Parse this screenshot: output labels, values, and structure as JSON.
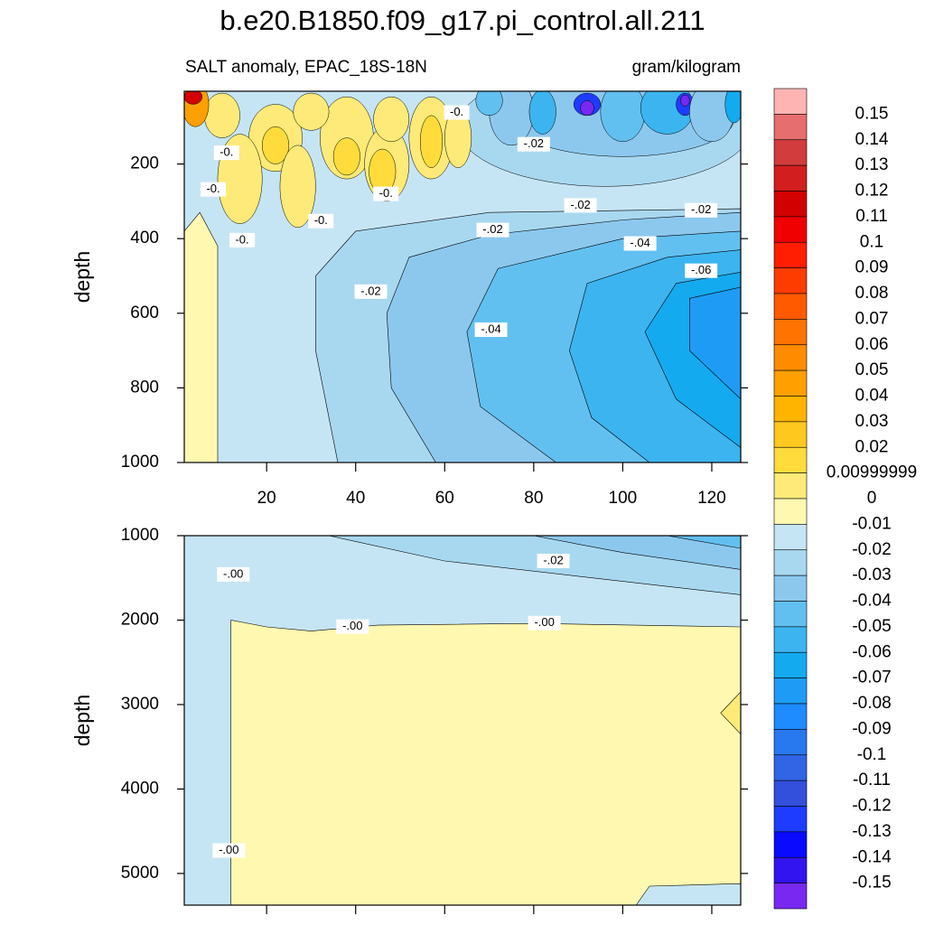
{
  "chart_data": [
    {
      "type": "contour",
      "title": "b.e20.B1850.f09_g17.pi_control.all.211",
      "subtitle_left": "SALT anomaly, EPAC_18S-18N",
      "subtitle_right": "gram/kilogram",
      "ylabel": "depth",
      "xlim": [
        1.5,
        126.5
      ],
      "ylim": [
        5,
        1000
      ],
      "xticks": [
        20,
        40,
        60,
        80,
        100,
        120
      ],
      "yticks": [
        200,
        400,
        600,
        800,
        1000
      ],
      "xtick_labels": true,
      "contour_labels": [
        {
          "value": -0.005,
          "label": "-0.",
          "x": 11,
          "y": 170
        },
        {
          "value": -0.005,
          "label": "-0.",
          "x": 8,
          "y": 268
        },
        {
          "value": -0.005,
          "label": "-0.",
          "x": 62.7,
          "y": 62
        },
        {
          "value": -0.02,
          "label": "-.02",
          "x": 80,
          "y": 147
        },
        {
          "value": -0.005,
          "label": "-0.",
          "x": 46.8,
          "y": 280
        },
        {
          "value": -0.02,
          "label": "-.02",
          "x": 90.5,
          "y": 311
        },
        {
          "value": -0.005,
          "label": "-0.",
          "x": 32.2,
          "y": 353
        },
        {
          "value": -0.02,
          "label": "-.02",
          "x": 70.8,
          "y": 377
        },
        {
          "value": -0.02,
          "label": "-.02",
          "x": 117.6,
          "y": 324
        },
        {
          "value": -0.005,
          "label": "-0.",
          "x": 14.5,
          "y": 404
        },
        {
          "value": -0.04,
          "label": "-.04",
          "x": 103.9,
          "y": 413
        },
        {
          "value": -0.02,
          "label": "-.02",
          "x": 43.4,
          "y": 542
        },
        {
          "value": -0.06,
          "label": "-.06",
          "x": 117.6,
          "y": 486
        },
        {
          "value": -0.04,
          "label": "-.04",
          "x": 70.4,
          "y": 644
        }
      ]
    },
    {
      "type": "contour",
      "ylabel": "depth",
      "xlim": [
        1.5,
        126.5
      ],
      "ylim": [
        1000,
        5375
      ],
      "xticks": [
        20,
        40,
        60,
        80,
        100,
        120
      ],
      "yticks": [
        1000,
        2000,
        3000,
        4000,
        5000
      ],
      "xtick_labels": false,
      "contour_labels": [
        {
          "value": -0.001,
          "label": "-.00",
          "x": 12.5,
          "y": 1459
        },
        {
          "value": -0.02,
          "label": "-.02",
          "x": 84.4,
          "y": 1299
        },
        {
          "value": -0.001,
          "label": "-.00",
          "x": 39.3,
          "y": 2077
        },
        {
          "value": -0.001,
          "label": "-.00",
          "x": 82.4,
          "y": 2035
        },
        {
          "value": -0.001,
          "label": "-.00",
          "x": 11.5,
          "y": 4728
        }
      ]
    }
  ],
  "colorbar": {
    "levels": [
      0.15,
      0.14,
      0.13,
      0.12,
      0.11,
      0.1,
      0.09,
      0.08,
      0.07,
      0.06,
      0.05,
      0.04,
      0.03,
      0.02,
      0.00999999,
      0,
      -0.01,
      -0.02,
      -0.03,
      -0.04,
      -0.05,
      -0.06,
      -0.07,
      -0.08,
      -0.09,
      -0.1,
      -0.11,
      -0.12,
      -0.13,
      -0.14,
      -0.15
    ],
    "colors": [
      "#ffb4b4",
      "#e66e6e",
      "#d23c3c",
      "#d21e1e",
      "#d20000",
      "#f00000",
      "#ff1e00",
      "#ff3c00",
      "#ff5a00",
      "#ff7300",
      "#ff8c00",
      "#ffa000",
      "#ffb400",
      "#ffc81e",
      "#ffdc3c",
      "#fdea78",
      "#fff8b0",
      "#c6e5f4",
      "#a8d8f0",
      "#8cc8ee",
      "#62c0f0",
      "#3cb4f0",
      "#14aaf0",
      "#1e9cf5",
      "#1e8cff",
      "#2878f0",
      "#3264e6",
      "#3250dc",
      "#1e3cff",
      "#0a0aff",
      "#3214f0",
      "#7828f0"
    ]
  }
}
